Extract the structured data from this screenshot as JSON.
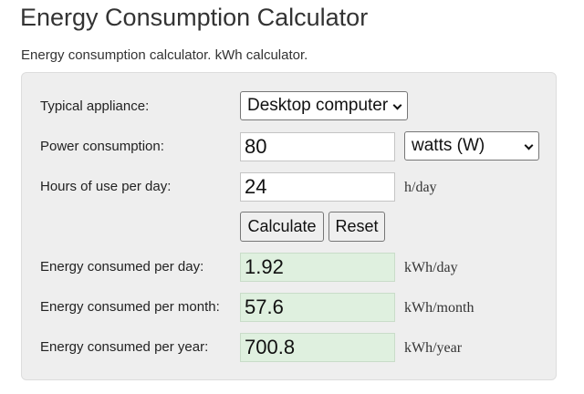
{
  "page": {
    "title": "Energy Consumption Calculator",
    "subtitle": "Energy consumption calculator. kWh calculator."
  },
  "form": {
    "appliance": {
      "label": "Typical appliance:",
      "selected": "Desktop computer"
    },
    "power": {
      "label": "Power consumption:",
      "value": "80",
      "unit_selected": "watts (W)"
    },
    "hours": {
      "label": "Hours of use per day:",
      "value": "24",
      "unit": "h/day"
    },
    "buttons": {
      "calculate": "Calculate",
      "reset": "Reset"
    }
  },
  "results": {
    "per_day": {
      "label": "Energy consumed per day:",
      "value": "1.92",
      "unit": "kWh/day"
    },
    "per_month": {
      "label": "Energy consumed per month:",
      "value": "57.6",
      "unit": "kWh/month"
    },
    "per_year": {
      "label": "Energy consumed per year:",
      "value": "700.8",
      "unit": "kWh/year"
    }
  },
  "icons": {
    "select_arrow": "chevron-down-icon"
  },
  "colors": {
    "panel_background": "#eeeeee",
    "result_background": "#dff0df",
    "button_background": "#efefef"
  }
}
